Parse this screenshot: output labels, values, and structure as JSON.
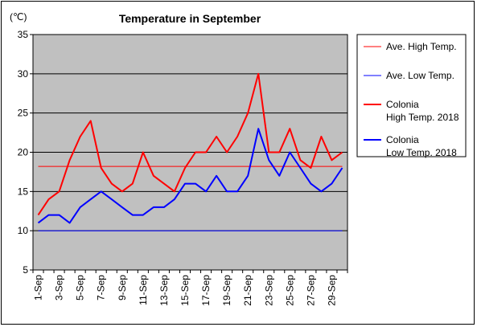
{
  "chart_data": {
    "type": "line",
    "title": "Temperature in September",
    "unit_label": "(℃)",
    "ylim": [
      5,
      35
    ],
    "yticks": [
      5,
      10,
      15,
      20,
      25,
      30,
      35
    ],
    "categories": [
      "1-Sep",
      "2-Sep",
      "3-Sep",
      "4-Sep",
      "5-Sep",
      "6-Sep",
      "7-Sep",
      "8-Sep",
      "9-Sep",
      "10-Sep",
      "11-Sep",
      "12-Sep",
      "13-Sep",
      "14-Sep",
      "15-Sep",
      "16-Sep",
      "17-Sep",
      "18-Sep",
      "19-Sep",
      "20-Sep",
      "21-Sep",
      "22-Sep",
      "23-Sep",
      "24-Sep",
      "25-Sep",
      "26-Sep",
      "27-Sep",
      "28-Sep",
      "29-Sep",
      "30-Sep"
    ],
    "xtick_labels": [
      "1-Sep",
      "3-Sep",
      "5-Sep",
      "7-Sep",
      "9-Sep",
      "11-Sep",
      "13-Sep",
      "15-Sep",
      "17-Sep",
      "19-Sep",
      "21-Sep",
      "23-Sep",
      "25-Sep",
      "27-Sep",
      "29-Sep"
    ],
    "grid": "horizontal",
    "plot_background": "#c0c0c0",
    "legend_position": "right",
    "series": [
      {
        "name": "Ave. High Temp.",
        "color": "#ff0000",
        "width": 1,
        "values": [
          18.2,
          18.2,
          18.2,
          18.2,
          18.2,
          18.2,
          18.2,
          18.2,
          18.2,
          18.2,
          18.2,
          18.2,
          18.2,
          18.2,
          18.2,
          18.2,
          18.2,
          18.2,
          18.2,
          18.2,
          18.2,
          18.2,
          18.2,
          18.2,
          18.2,
          18.2,
          18.2,
          18.2,
          18.2,
          18.2
        ]
      },
      {
        "name": "Ave. Low Temp.",
        "color": "#0000ff",
        "width": 1,
        "values": [
          10,
          10,
          10,
          10,
          10,
          10,
          10,
          10,
          10,
          10,
          10,
          10,
          10,
          10,
          10,
          10,
          10,
          10,
          10,
          10,
          10,
          10,
          10,
          10,
          10,
          10,
          10,
          10,
          10,
          10
        ]
      },
      {
        "name_lines": [
          "Colonia",
          "High Temp. 2018"
        ],
        "color": "#ff0000",
        "width": 2,
        "values": [
          12,
          14,
          15,
          19,
          22,
          24,
          18,
          16,
          15,
          16,
          20,
          17,
          16,
          15,
          18,
          20,
          20,
          22,
          20,
          22,
          25,
          30,
          20,
          20,
          23,
          19,
          18,
          22,
          19,
          20
        ]
      },
      {
        "name_lines": [
          "Colonia",
          "Low Temp. 2018"
        ],
        "color": "#0000ff",
        "width": 2,
        "values": [
          11,
          12,
          12,
          11,
          13,
          14,
          15,
          14,
          13,
          12,
          12,
          13,
          13,
          14,
          16,
          16,
          15,
          17,
          15,
          15,
          17,
          23,
          19,
          17,
          20,
          18,
          16,
          15,
          16,
          18
        ]
      }
    ]
  }
}
